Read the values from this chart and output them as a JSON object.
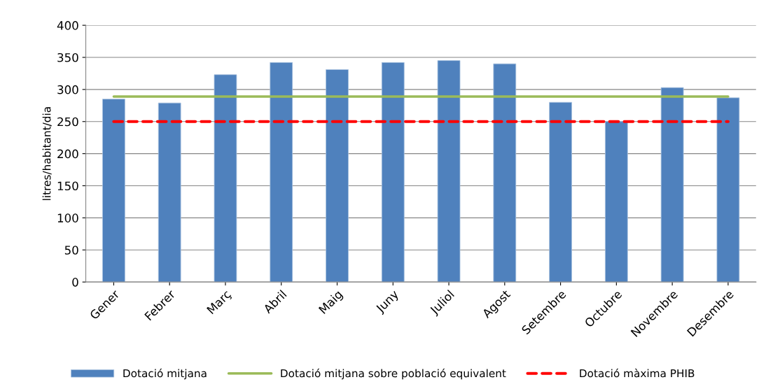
{
  "chart_data": {
    "type": "bar",
    "ylabel": "litres/habitant/dia",
    "categories": [
      "Gener",
      "Febrer",
      "Març",
      "Abril",
      "Maig",
      "Juny",
      "Juliol",
      "Agost",
      "Setembre",
      "Octubre",
      "Novembre",
      "Desembre"
    ],
    "series": [
      {
        "name": "Dotació mitjana",
        "color": "#4f81bd",
        "values": [
          285,
          279,
          323,
          342,
          331,
          342,
          345,
          340,
          280,
          250,
          303,
          287
        ]
      },
      {
        "name": "Dotació mitjana sobre població equivalent",
        "type": "line",
        "line_style": "solid",
        "color": "#9bbb59",
        "values": [
          289,
          289,
          289,
          289,
          289,
          289,
          289,
          289,
          289,
          289,
          289,
          289
        ]
      },
      {
        "name": "Dotació màxima PHIB",
        "type": "line",
        "line_style": "dashed",
        "color": "#ff0000",
        "values": [
          250,
          250,
          250,
          250,
          250,
          250,
          250,
          250,
          250,
          250,
          250,
          250
        ]
      }
    ],
    "ylim": [
      0,
      400
    ],
    "yticks": [
      0,
      50,
      100,
      150,
      200,
      250,
      300,
      350,
      400
    ],
    "grid": "y",
    "legend": "bottom",
    "marker": "none"
  }
}
